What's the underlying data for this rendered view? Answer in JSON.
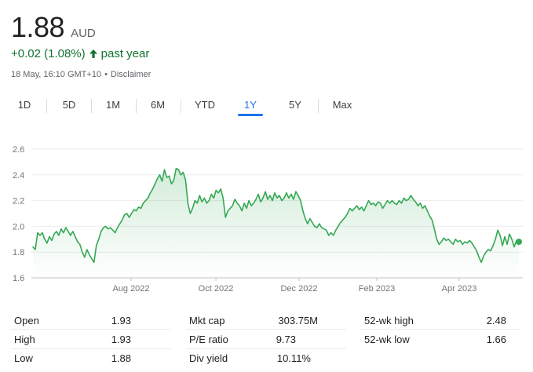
{
  "header": {
    "cut_title": "· · · · · · ·",
    "price": "1.88",
    "currency": "AUD",
    "change": "+0.02 (1.08%)",
    "change_period": "past year",
    "timestamp": "18 May, 16:10 GMT+10",
    "separator": "•",
    "disclaimer": "Disclaimer"
  },
  "colors": {
    "up": "#137333",
    "line": "#34a853",
    "accent": "#1a73e8"
  },
  "tabs": [
    {
      "label": "1D",
      "active": false
    },
    {
      "label": "5D",
      "active": false
    },
    {
      "label": "1M",
      "active": false
    },
    {
      "label": "6M",
      "active": false
    },
    {
      "label": "YTD",
      "active": false
    },
    {
      "label": "1Y",
      "active": true
    },
    {
      "label": "5Y",
      "active": false
    },
    {
      "label": "Max",
      "active": false
    }
  ],
  "chart_data": {
    "type": "area",
    "yticks": [
      "2.6",
      "2.4",
      "2.2",
      "2.0",
      "1.8",
      "1.6"
    ],
    "ylim": [
      1.6,
      2.6
    ],
    "xticks": [
      "Aug 2022",
      "Oct 2022",
      "Dec 2022",
      "Feb 2023",
      "Apr 2023"
    ],
    "grid": true,
    "series": [
      {
        "values": [
          1.84,
          1.82,
          1.95,
          1.93,
          1.95,
          1.9,
          1.87,
          1.92,
          1.89,
          1.94,
          1.96,
          1.93,
          1.98,
          1.95,
          1.99,
          1.96,
          1.93,
          1.96,
          1.92,
          1.88,
          1.86,
          1.8,
          1.76,
          1.82,
          1.78,
          1.75,
          1.72,
          1.85,
          1.9,
          1.96,
          1.99,
          2.0,
          1.98,
          1.99,
          1.97,
          1.95,
          1.99,
          2.02,
          2.05,
          2.09,
          2.1,
          2.07,
          2.1,
          2.13,
          2.12,
          2.15,
          2.14,
          2.18,
          2.2,
          2.22,
          2.26,
          2.29,
          2.33,
          2.37,
          2.4,
          2.35,
          2.44,
          2.38,
          2.39,
          2.33,
          2.36,
          2.45,
          2.44,
          2.4,
          2.42,
          2.36,
          2.18,
          2.1,
          2.14,
          2.2,
          2.18,
          2.24,
          2.19,
          2.22,
          2.18,
          2.2,
          2.25,
          2.22,
          2.28,
          2.26,
          2.29,
          2.22,
          2.07,
          2.12,
          2.14,
          2.16,
          2.21,
          2.18,
          2.16,
          2.12,
          2.18,
          2.14,
          2.2,
          2.16,
          2.18,
          2.21,
          2.25,
          2.19,
          2.22,
          2.27,
          2.21,
          2.24,
          2.2,
          2.26,
          2.22,
          2.24,
          2.2,
          2.22,
          2.26,
          2.22,
          2.25,
          2.21,
          2.27,
          2.24,
          2.2,
          2.12,
          2.06,
          2.02,
          2.06,
          2.03,
          2.0,
          1.99,
          2.02,
          1.99,
          1.98,
          1.97,
          1.93,
          1.95,
          1.93,
          1.97,
          2.0,
          2.03,
          2.05,
          2.07,
          2.1,
          2.14,
          2.12,
          2.14,
          2.16,
          2.13,
          2.15,
          2.12,
          2.16,
          2.2,
          2.17,
          2.18,
          2.16,
          2.19,
          2.18,
          2.14,
          2.17,
          2.2,
          2.18,
          2.2,
          2.18,
          2.17,
          2.2,
          2.18,
          2.22,
          2.2,
          2.21,
          2.24,
          2.21,
          2.19,
          2.16,
          2.18,
          2.14,
          2.16,
          2.12,
          2.08,
          2.05,
          1.98,
          1.9,
          1.86,
          1.88,
          1.91,
          1.89,
          1.9,
          1.88,
          1.86,
          1.9,
          1.88,
          1.89,
          1.86,
          1.88,
          1.87,
          1.89,
          1.87,
          1.84,
          1.81,
          1.76,
          1.72,
          1.77,
          1.8,
          1.82,
          1.81,
          1.85,
          1.9,
          1.97,
          1.93,
          1.85,
          1.92,
          1.86,
          1.94,
          1.9,
          1.84,
          1.89,
          1.88
        ]
      }
    ]
  },
  "stats": {
    "col1": [
      {
        "label": "Open",
        "value": "1.93"
      },
      {
        "label": "High",
        "value": "1.93"
      },
      {
        "label": "Low",
        "value": "1.88"
      }
    ],
    "col2": [
      {
        "label": "Mkt cap",
        "value": "303.75M"
      },
      {
        "label": "P/E ratio",
        "value": "9.73"
      },
      {
        "label": "Div yield",
        "value": "10.11%"
      }
    ],
    "col3": [
      {
        "label": "52-wk high",
        "value": "2.48"
      },
      {
        "label": "52-wk low",
        "value": "1.66"
      }
    ]
  }
}
